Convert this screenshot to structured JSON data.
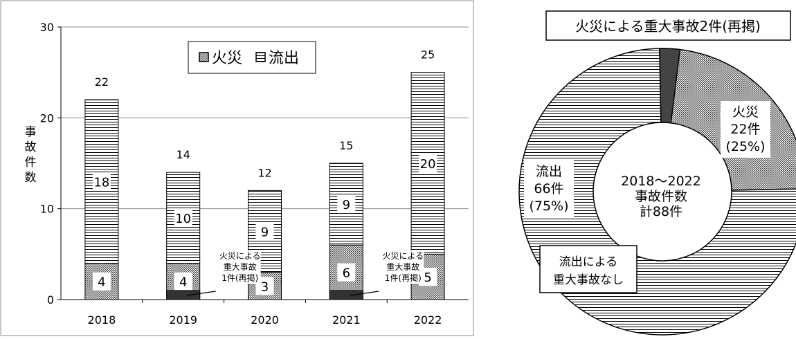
{
  "chart_data": [
    {
      "type": "bar",
      "stacked": true,
      "categories": [
        "2018",
        "2019",
        "2020",
        "2021",
        "2022"
      ],
      "series": [
        {
          "name": "火災",
          "values": [
            4,
            4,
            3,
            6,
            5
          ],
          "pattern": "dotted"
        },
        {
          "name": "流出",
          "values": [
            18,
            10,
            9,
            9,
            20
          ],
          "pattern": "horizontal-lines"
        }
      ],
      "totals": [
        22,
        14,
        12,
        15,
        25
      ],
      "major_fire_accidents": [
        0,
        1,
        0,
        1,
        0
      ],
      "ylabel": "事故件数",
      "ylim": [
        0,
        30
      ],
      "yticks": [
        0,
        10,
        20,
        30
      ],
      "ytick_labels": [
        "0",
        "10",
        "20",
        "30"
      ],
      "grid": true,
      "legend_position": "top",
      "legend": [
        "火災",
        "流出"
      ],
      "annotations": [
        {
          "category": "2019",
          "lines": [
            "火災による",
            "重大事故",
            "1件(再掲)"
          ]
        },
        {
          "category": "2021",
          "lines": [
            "火災による",
            "重大事故",
            "1件(再掲)"
          ]
        }
      ]
    },
    {
      "type": "pie",
      "donut": true,
      "slices": [
        {
          "name": "火災",
          "value": 22,
          "percent": 25,
          "label_lines": [
            "火災",
            "22件",
            "(25%)"
          ],
          "pattern": "dotted"
        },
        {
          "name": "流出",
          "value": 66,
          "percent": 75,
          "label_lines": [
            "流出",
            "66件",
            "(75%)"
          ],
          "pattern": "horizontal-lines"
        }
      ],
      "major_fire_accidents": 2,
      "center_lines": [
        "2018〜2022",
        "事故件数",
        "計88件"
      ],
      "callouts": [
        {
          "text": "火災による重大事故2件(再掲)"
        },
        {
          "lines": [
            "流出による",
            "重大事故なし"
          ]
        }
      ]
    }
  ]
}
